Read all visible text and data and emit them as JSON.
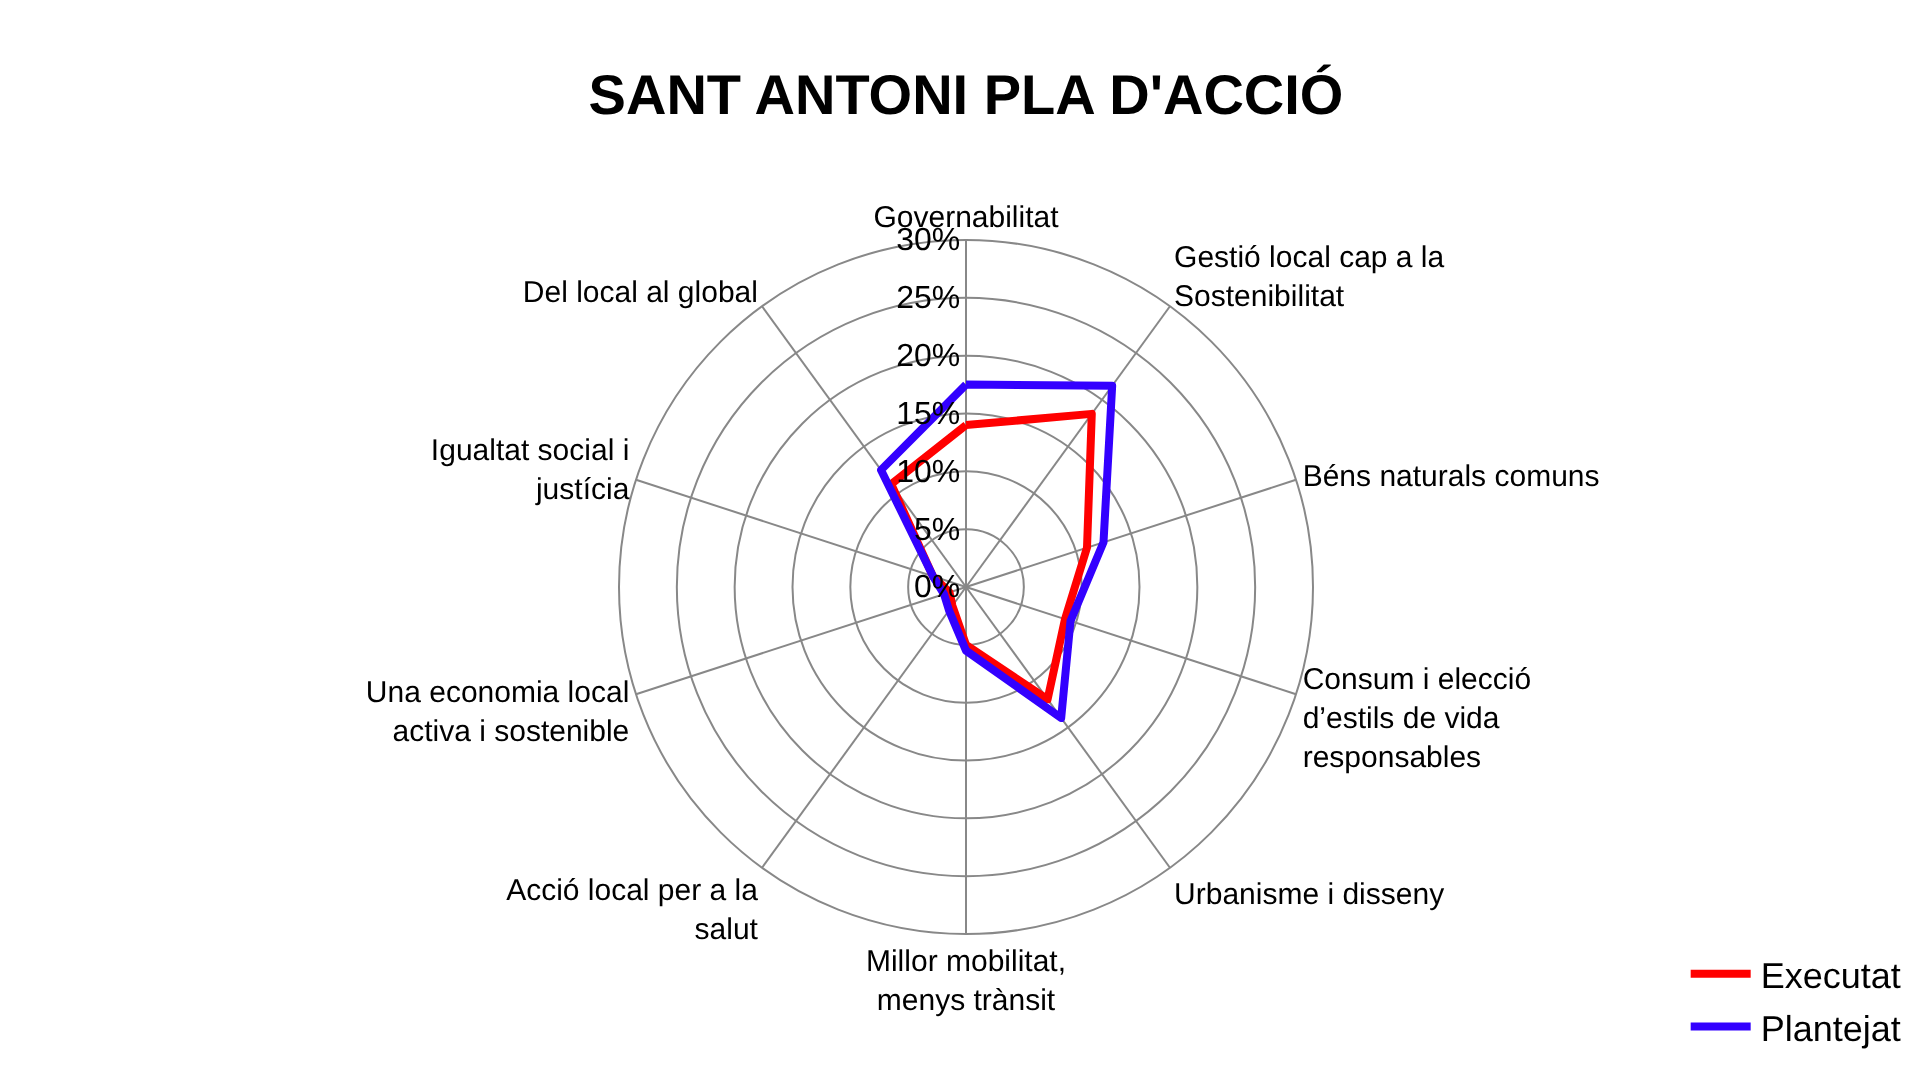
{
  "chart_data": {
    "type": "radar",
    "title": "SANT ANTONI PLA D'ACCIÓ",
    "categories": [
      "Governabilitat",
      "Gestió local cap a la Sostenibilitat",
      "Béns naturals comuns",
      "Consum i elecció d’estils de vida responsables",
      "Urbanisme i disseny",
      "Millor mobilitat, menys trànsit",
      "Acció local per a la salut",
      "Una economia local activa i sostenible",
      "Igualtat social i justícia",
      "Del local al global"
    ],
    "series": [
      {
        "name": "Executat",
        "color": "#ff0000",
        "values": [
          14,
          18.5,
          11,
          9,
          12,
          5,
          2,
          1.5,
          3,
          11
        ]
      },
      {
        "name": "Plantejat",
        "color": "#3300ff",
        "values": [
          17.5,
          21.5,
          12.5,
          9.5,
          14,
          5.5,
          2.5,
          2,
          3,
          12.5
        ]
      }
    ],
    "ylim": [
      0,
      30
    ],
    "yticks": [
      {
        "value": 0,
        "label": "0%"
      },
      {
        "value": 5,
        "label": "5%"
      },
      {
        "value": 10,
        "label": "10%"
      },
      {
        "value": 15,
        "label": "15%"
      },
      {
        "value": 20,
        "label": "20%"
      },
      {
        "value": 25,
        "label": "25%"
      },
      {
        "value": 30,
        "label": "30%"
      }
    ],
    "grid": true,
    "legend": "bottom right",
    "marker": "none",
    "line_style": "solid"
  }
}
